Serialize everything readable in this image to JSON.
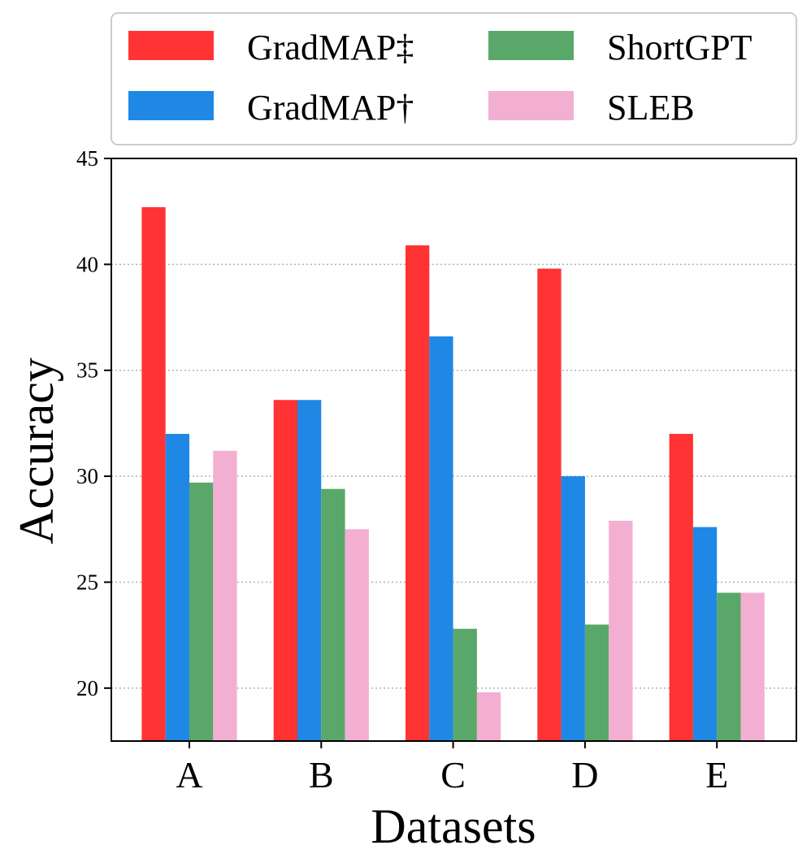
{
  "chart_data": {
    "type": "bar",
    "title": "",
    "xlabel": "Datasets",
    "ylabel": "Accuracy",
    "categories": [
      "A",
      "B",
      "C",
      "D",
      "E"
    ],
    "ylim": [
      17.5,
      45
    ],
    "yticks": [
      20,
      25,
      30,
      35,
      40,
      45
    ],
    "grid": true,
    "legend_position": "top",
    "series": [
      {
        "name": "GradMAP‡",
        "color": "#ff3333",
        "values": [
          42.7,
          33.6,
          40.9,
          39.8,
          32.0
        ]
      },
      {
        "name": "GradMAP†",
        "color": "#1f88e5",
        "values": [
          32.0,
          33.6,
          36.6,
          30.0,
          27.6
        ]
      },
      {
        "name": "ShortGPT",
        "color": "#59a869",
        "values": [
          29.7,
          29.4,
          22.8,
          23.0,
          24.5
        ]
      },
      {
        "name": "SLEB",
        "color": "#f3afd2",
        "values": [
          31.2,
          27.5,
          19.8,
          27.9,
          24.5
        ]
      }
    ]
  }
}
